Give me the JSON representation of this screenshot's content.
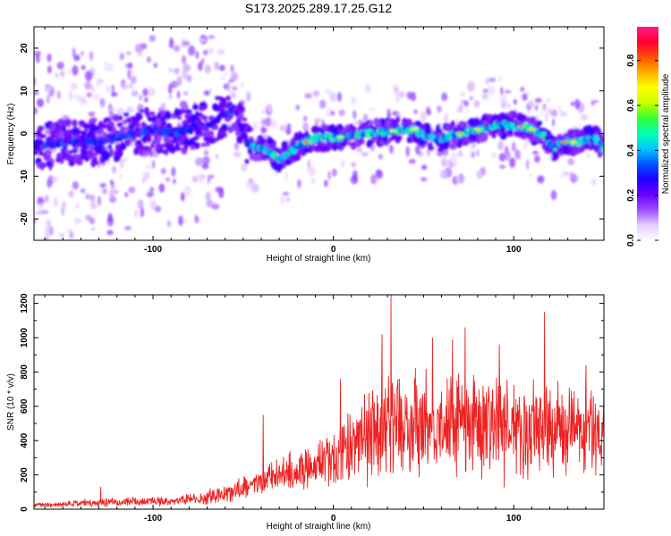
{
  "title": "S173.2025.289.17.25.G12",
  "chart_data": [
    {
      "type": "heatmap",
      "xlabel": "Height of straight line (km)",
      "ylabel": "Frequency (Hz)",
      "xlim": [
        -166,
        150
      ],
      "ylim": [
        -25,
        25
      ],
      "xticks": [
        -100,
        0,
        100
      ],
      "yticks": [
        -20,
        -10,
        0,
        10,
        20
      ],
      "ridge": {
        "x": [
          -160,
          -150,
          -140,
          -130,
          -120,
          -110,
          -100,
          -90,
          -80,
          -70,
          -62,
          -55,
          -48,
          -44,
          -42,
          -40,
          -36,
          -30,
          -26,
          -20,
          -15,
          -10,
          0,
          10,
          20,
          30,
          40,
          45,
          50,
          55,
          60,
          65,
          70,
          80,
          90,
          95,
          100,
          105,
          110,
          118,
          122,
          125,
          135,
          145,
          150
        ],
        "freq": [
          -3,
          -2,
          -2,
          -2,
          -1,
          0,
          1,
          0,
          1,
          2,
          4,
          6,
          -2,
          -3,
          -4,
          -3,
          -4,
          -6,
          -5,
          -3,
          -2,
          -1,
          -1,
          -0.5,
          0,
          0.5,
          1,
          1,
          -0.5,
          -1,
          -1.5,
          -0.5,
          0,
          1,
          2,
          2,
          2,
          1.5,
          1,
          -1,
          -4,
          -2,
          -2,
          -1,
          -3.5
        ]
      },
      "colorbar": {
        "label": "Normalized spectral amplitude",
        "ticks": [
          0.0,
          0.2,
          0.4,
          0.6,
          0.8
        ],
        "range": [
          0,
          0.95
        ],
        "stops": [
          "#ffffff",
          "#e6ccff",
          "#9b4dff",
          "#6a00ff",
          "#1e00ff",
          "#0055ff",
          "#00c8ff",
          "#00ffb0",
          "#33ff33",
          "#c8ff00",
          "#ffff00",
          "#ffb000",
          "#ff5000",
          "#ff0033",
          "#ff1a8c"
        ]
      }
    },
    {
      "type": "line",
      "xlabel": "Height of straight line (km)",
      "ylabel": "SNR (10 * v/v)",
      "xlim": [
        -166,
        150
      ],
      "ylim": [
        0,
        1250
      ],
      "xticks": [
        -100,
        0,
        100
      ],
      "yticks": [
        0,
        200,
        400,
        600,
        800,
        1000,
        1200
      ],
      "color": "#ee2222",
      "envelope": {
        "x": [
          -166,
          -150,
          -130,
          -110,
          -90,
          -80,
          -70,
          -60,
          -50,
          -40,
          -30,
          -20,
          -10,
          0,
          10,
          20,
          30,
          40,
          50,
          60,
          70,
          80,
          90,
          100,
          110,
          120,
          130,
          140,
          150
        ],
        "mean": [
          25,
          30,
          40,
          45,
          45,
          55,
          70,
          95,
          120,
          160,
          200,
          230,
          260,
          300,
          360,
          420,
          460,
          480,
          480,
          470,
          480,
          490,
          480,
          470,
          460,
          470,
          460,
          450,
          440
        ],
        "spread": [
          15,
          20,
          30,
          30,
          30,
          40,
          55,
          70,
          80,
          100,
          120,
          140,
          160,
          200,
          260,
          330,
          360,
          370,
          360,
          360,
          360,
          370,
          360,
          350,
          350,
          340,
          330,
          320,
          300
        ]
      },
      "peaks": [
        {
          "x": -129,
          "y": 130
        },
        {
          "x": -39,
          "y": 550
        },
        {
          "x": 4,
          "y": 760
        },
        {
          "x": 32,
          "y": 1250
        },
        {
          "x": 27,
          "y": 1020
        },
        {
          "x": 55,
          "y": 1000
        },
        {
          "x": 73,
          "y": 1060
        },
        {
          "x": 66,
          "y": 990
        },
        {
          "x": 92,
          "y": 960
        },
        {
          "x": 117,
          "y": 1150
        },
        {
          "x": 140,
          "y": 840
        }
      ]
    }
  ]
}
